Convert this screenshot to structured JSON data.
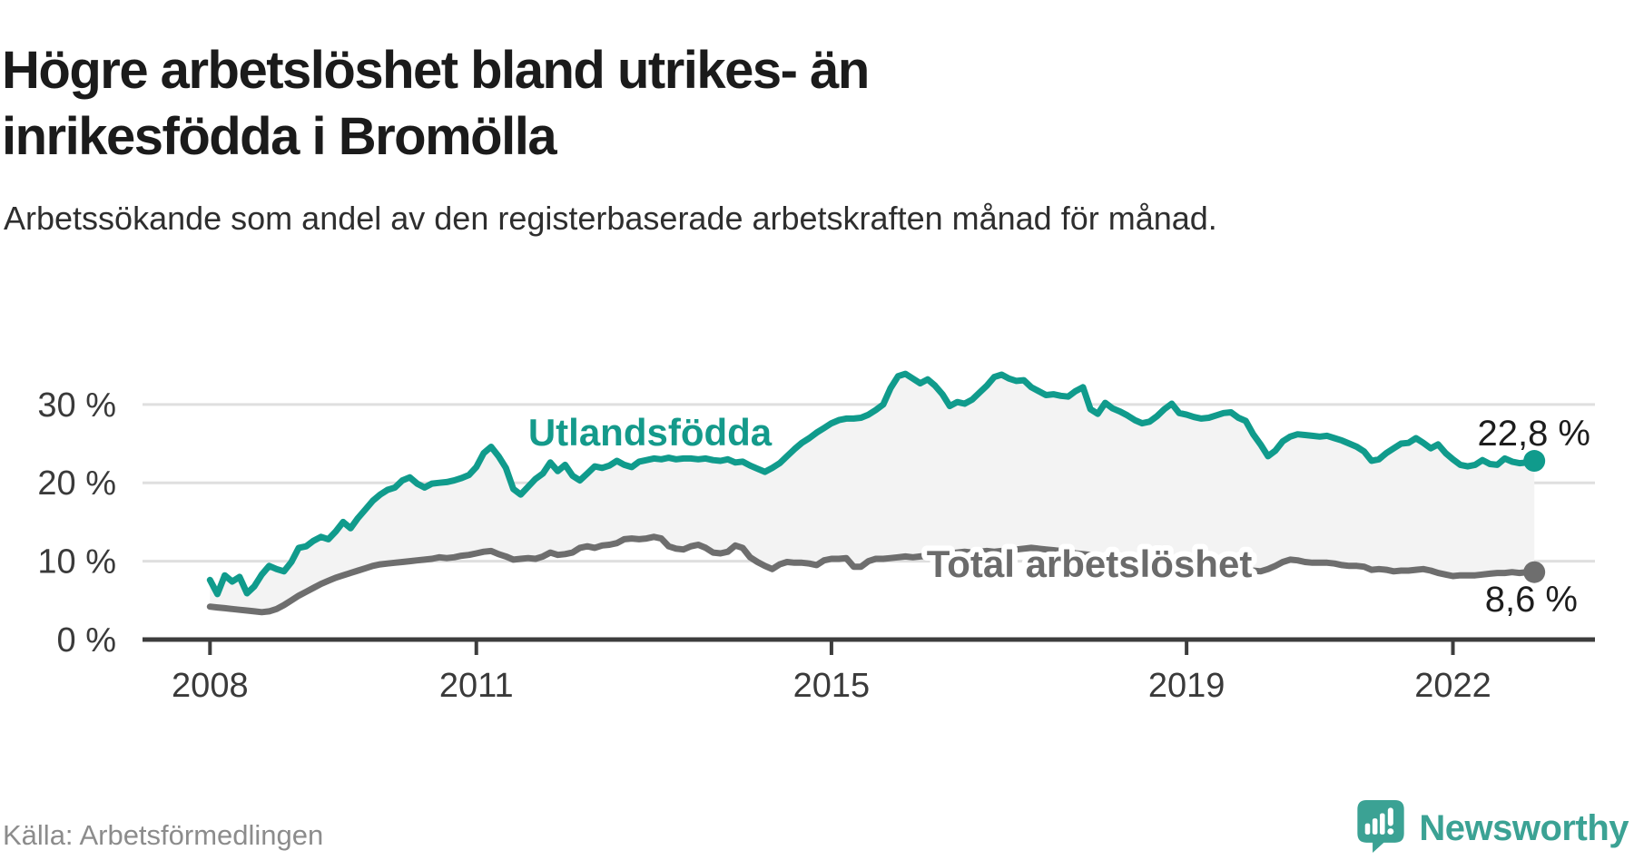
{
  "header": {
    "title": "Högre arbetslöshet bland utrikes- än inrikesfödda i Bromölla",
    "subtitle": "Arbetssökande som andel av den registerbaserade arbetskraften månad för månad."
  },
  "footer": {
    "source": "Källa: Arbetsförmedlingen",
    "brand_name": "Newsworthy",
    "brand_icon": "newsworthy-speech-bubble-chart-icon"
  },
  "colors": {
    "teal_line": "#109b8c",
    "teal_label": "#149a8b",
    "gray_line": "#6e6e6e",
    "gray_label": "#6b6b6b",
    "grid": "#dfdfdf",
    "axis": "#3d3d3d",
    "tick_text": "#3a3a3a",
    "value_text": "#1d1d1d",
    "fill_between": "#f3f3f3",
    "brand_teal": "#3ba294",
    "halo": "#ffffff"
  },
  "chart_data": {
    "type": "line",
    "title": "Högre arbetslöshet bland utrikes- än inrikesfödda i Bromölla",
    "subtitle": "Arbetssökande som andel av den registerbaserade arbetskraften månad för månad.",
    "xlim": [
      2007.24,
      2023.6
    ],
    "ylim": [
      0,
      36
    ],
    "grid": "horizontal-only",
    "legend_position": "inline-labels-on-lines",
    "area_between_series": true,
    "x_ticks": [
      {
        "value": 2008,
        "label": "2008"
      },
      {
        "value": 2011,
        "label": "2011"
      },
      {
        "value": 2015,
        "label": "2015"
      },
      {
        "value": 2019,
        "label": "2019"
      },
      {
        "value": 2022,
        "label": "2022"
      }
    ],
    "y_ticks": [
      {
        "value": 30,
        "label": "30 %"
      },
      {
        "value": 20,
        "label": "20 %"
      },
      {
        "value": 10,
        "label": "10 %"
      },
      {
        "value": 0,
        "label": "0 %"
      }
    ],
    "x_unit": "monthly from January 2008 to December 2022",
    "start_year": 2008,
    "points_per_year": 12,
    "series": [
      {
        "name": "Utlandsfödda",
        "color": "#109b8c",
        "end_label": "22,8 %",
        "end_value": 22.8,
        "values": [
          7.6,
          5.8,
          8.2,
          7.4,
          8.0,
          5.9,
          6.8,
          8.3,
          9.4,
          9.0,
          8.7,
          9.9,
          11.7,
          11.9,
          12.6,
          13.1,
          12.8,
          13.8,
          15.0,
          14.2,
          15.5,
          16.6,
          17.7,
          18.5,
          19.1,
          19.4,
          20.3,
          20.7,
          19.9,
          19.4,
          19.9,
          20.0,
          20.1,
          20.3,
          20.6,
          21.0,
          22.0,
          23.8,
          24.6,
          23.4,
          21.9,
          19.2,
          18.5,
          19.5,
          20.5,
          21.2,
          22.6,
          21.5,
          22.3,
          20.9,
          20.3,
          21.2,
          22.1,
          21.9,
          22.2,
          22.8,
          22.3,
          22.0,
          22.7,
          22.9,
          23.1,
          23.0,
          23.2,
          23.0,
          23.1,
          23.1,
          23.0,
          23.1,
          22.9,
          22.8,
          23.0,
          22.6,
          22.7,
          22.2,
          21.8,
          21.4,
          21.9,
          22.5,
          23.4,
          24.3,
          25.1,
          25.7,
          26.4,
          27.0,
          27.6,
          28.0,
          28.2,
          28.2,
          28.3,
          28.7,
          29.3,
          30.0,
          32.1,
          33.6,
          33.9,
          33.3,
          32.7,
          33.2,
          32.4,
          31.3,
          29.8,
          30.3,
          30.1,
          30.6,
          31.5,
          32.4,
          33.5,
          33.8,
          33.3,
          33.0,
          33.1,
          32.2,
          31.7,
          31.2,
          31.3,
          31.1,
          31.0,
          31.7,
          32.2,
          29.4,
          28.8,
          30.2,
          29.5,
          29.1,
          28.6,
          28.0,
          27.6,
          27.8,
          28.5,
          29.4,
          30.1,
          28.9,
          28.7,
          28.4,
          28.2,
          28.3,
          28.6,
          28.9,
          29.0,
          28.3,
          27.9,
          26.2,
          24.9,
          23.4,
          24.1,
          25.3,
          25.9,
          26.2,
          26.1,
          26.0,
          25.9,
          26.0,
          25.7,
          25.4,
          25.0,
          24.6,
          24.0,
          22.8,
          23.0,
          23.8,
          24.4,
          25.0,
          25.1,
          25.7,
          25.1,
          24.4,
          24.9,
          23.8,
          23.0,
          22.3,
          22.1,
          22.3,
          22.9,
          22.4,
          22.3,
          23.1,
          22.7,
          22.5,
          22.6,
          22.8
        ]
      },
      {
        "name": "Total arbetslöshet",
        "color": "#6e6e6e",
        "end_label": "8,6 %",
        "end_value": 8.6,
        "values": [
          4.2,
          4.1,
          4.0,
          3.9,
          3.8,
          3.7,
          3.6,
          3.5,
          3.6,
          3.9,
          4.4,
          5.0,
          5.6,
          6.1,
          6.6,
          7.1,
          7.5,
          7.9,
          8.2,
          8.5,
          8.8,
          9.1,
          9.4,
          9.6,
          9.7,
          9.8,
          9.9,
          10.0,
          10.1,
          10.2,
          10.3,
          10.5,
          10.4,
          10.5,
          10.7,
          10.8,
          11.0,
          11.2,
          11.3,
          10.9,
          10.6,
          10.2,
          10.3,
          10.4,
          10.3,
          10.6,
          11.1,
          10.8,
          10.9,
          11.1,
          11.7,
          11.9,
          11.7,
          12.0,
          12.1,
          12.3,
          12.8,
          12.9,
          12.8,
          12.9,
          13.1,
          12.9,
          11.9,
          11.6,
          11.5,
          11.9,
          12.1,
          11.7,
          11.1,
          11.0,
          11.2,
          12.0,
          11.7,
          10.5,
          9.9,
          9.4,
          9.0,
          9.6,
          9.9,
          9.8,
          9.8,
          9.7,
          9.5,
          10.1,
          10.3,
          10.3,
          10.4,
          9.3,
          9.3,
          10.0,
          10.3,
          10.3,
          10.4,
          10.5,
          10.6,
          10.5,
          10.6,
          10.7,
          10.8,
          10.9,
          11.0,
          11.1,
          11.2,
          11.1,
          11.2,
          11.3,
          11.2,
          11.3,
          11.4,
          11.5,
          11.6,
          11.7,
          11.6,
          11.5,
          11.4,
          11.3,
          11.2,
          11.0,
          10.9,
          10.8,
          10.7,
          10.6,
          10.4,
          10.2,
          10.1,
          10.0,
          9.9,
          9.8,
          9.7,
          9.6,
          9.5,
          9.4,
          9.3,
          9.2,
          9.2,
          9.1,
          9.1,
          9.3,
          9.4,
          9.5,
          9.0,
          8.8,
          8.7,
          9.0,
          9.4,
          9.9,
          10.2,
          10.1,
          9.9,
          9.8,
          9.8,
          9.8,
          9.7,
          9.5,
          9.4,
          9.4,
          9.3,
          8.9,
          9.0,
          8.9,
          8.7,
          8.8,
          8.8,
          8.9,
          9.0,
          8.8,
          8.5,
          8.3,
          8.1,
          8.2,
          8.2,
          8.2,
          8.3,
          8.4,
          8.5,
          8.5,
          8.6,
          8.5,
          8.6,
          8.6
        ]
      }
    ]
  }
}
